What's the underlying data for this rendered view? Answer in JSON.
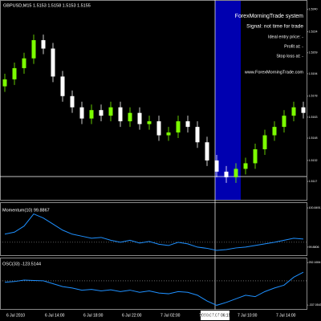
{
  "chart_data": [
    {
      "type": "candlestick",
      "title": "GBPUSD,M15 1.5153 1.5158 1.5153 1.5155",
      "annotations": [
        "ForexMorningTrade system",
        "Signal: not time for trade",
        "Ideal entry price: -",
        "Profit at: -",
        "Stop loss at: -",
        "www.ForexMorningTrade.com"
      ],
      "crosshair_label": "2010.07.07 06:15",
      "categories": [
        "6 Jul 2010",
        null,
        null,
        null,
        "6 Jul 14:00",
        null,
        null,
        null,
        "6 Jul 18:00",
        null,
        null,
        null,
        "6 Jul 22:00",
        null,
        null,
        null,
        "7 Jul 02:00",
        null,
        null,
        null,
        "7 Jul 06:00",
        null,
        null,
        null,
        "7 Jul 10:00",
        null,
        null,
        null,
        "7 Jul 14:00",
        null,
        null,
        null
      ],
      "open": [
        1.5185,
        1.519,
        1.5198,
        1.5205,
        1.5218,
        1.5212,
        1.5192,
        1.5178,
        1.517,
        1.5162,
        1.5168,
        1.5164,
        1.517,
        1.516,
        1.5166,
        1.5158,
        1.516,
        1.515,
        1.5152,
        1.516,
        1.5156,
        1.5145,
        1.5132,
        1.5124,
        1.512,
        1.5126,
        1.513,
        1.514,
        1.515,
        1.5156,
        1.5164,
        1.517
      ],
      "high": [
        1.5194,
        1.5202,
        1.5209,
        1.5222,
        1.5222,
        1.5216,
        1.5196,
        1.5182,
        1.5174,
        1.5172,
        1.5172,
        1.5174,
        1.5174,
        1.517,
        1.517,
        1.5164,
        1.5164,
        1.5156,
        1.5164,
        1.5164,
        1.516,
        1.5149,
        1.5136,
        1.5128,
        1.513,
        1.5134,
        1.5144,
        1.5154,
        1.516,
        1.5168,
        1.5174,
        1.5174
      ],
      "low": [
        1.5181,
        1.5186,
        1.5194,
        1.5201,
        1.5208,
        1.5188,
        1.5174,
        1.5166,
        1.5158,
        1.5158,
        1.516,
        1.516,
        1.5156,
        1.5156,
        1.5154,
        1.5154,
        1.5146,
        1.5146,
        1.5148,
        1.5152,
        1.5141,
        1.5128,
        1.512,
        1.5116,
        1.5116,
        1.5122,
        1.5126,
        1.5136,
        1.5146,
        1.5152,
        1.516,
        1.5162
      ],
      "close": [
        1.519,
        1.5198,
        1.5205,
        1.5218,
        1.5212,
        1.5192,
        1.5178,
        1.517,
        1.5162,
        1.5168,
        1.5164,
        1.517,
        1.516,
        1.5166,
        1.5158,
        1.516,
        1.515,
        1.5152,
        1.516,
        1.5156,
        1.5145,
        1.5132,
        1.5124,
        1.512,
        1.5126,
        1.513,
        1.514,
        1.515,
        1.5156,
        1.5164,
        1.517,
        1.5166
      ],
      "up_color": "#7cfc00",
      "down_color": "#ffffff",
      "ylim": [
        1.5105,
        1.5245
      ],
      "yticks": [
        {
          "value": 1.524,
          "label": "1.5240"
        },
        1.5224,
        1.5209,
        1.5194,
        1.5178,
        1.5163,
        1.5148,
        1.5132,
        1.5117
      ]
    },
    {
      "type": "line",
      "title": "Momentum(10) 99.8867",
      "color": "#1e90ff",
      "values": [
        100.2,
        100.25,
        100.4,
        100.7,
        100.6,
        100.45,
        100.3,
        100.2,
        100.15,
        100.1,
        100.12,
        100.05,
        100,
        100.05,
        99.98,
        100.02,
        99.95,
        99.92,
        100,
        99.96,
        99.88,
        99.85,
        99.8,
        99.82,
        99.86,
        99.88,
        99.92,
        99.96,
        100,
        100.05,
        100.1,
        100.08
      ],
      "ylim": [
        99.7,
        100.95
      ],
      "yticks": [
        100.8491,
        99.8806
      ],
      "level": 100
    },
    {
      "type": "line",
      "title": "OSC(33) -123.5144",
      "color": "#1e90ff",
      "values": [
        -20,
        -10,
        10,
        5,
        0,
        -40,
        -80,
        -100,
        -130,
        -120,
        -140,
        -125,
        -150,
        -130,
        -160,
        -140,
        -170,
        -180,
        -150,
        -160,
        -200,
        -280,
        -340,
        -300,
        -250,
        -200,
        -220,
        -150,
        -100,
        -60,
        50,
        120
      ],
      "ylim": [
        -380,
        300
      ],
      "yticks": [
        252.1654,
        -337.0543
      ],
      "level": 0
    }
  ]
}
